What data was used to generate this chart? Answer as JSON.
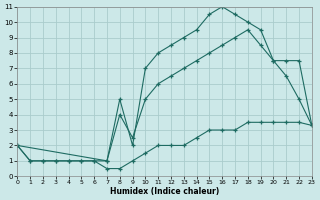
{
  "bg_color": "#cce8e8",
  "grid_color": "#aacccc",
  "line_color": "#1e6b62",
  "xlim": [
    0,
    23
  ],
  "ylim": [
    0,
    11
  ],
  "xticks": [
    0,
    1,
    2,
    3,
    4,
    5,
    6,
    7,
    8,
    9,
    10,
    11,
    12,
    13,
    14,
    15,
    16,
    17,
    18,
    19,
    20,
    21,
    22,
    23
  ],
  "yticks": [
    0,
    1,
    2,
    3,
    4,
    5,
    6,
    7,
    8,
    9,
    10,
    11
  ],
  "xlabel": "Humidex (Indice chaleur)",
  "line_top_x": [
    0,
    1,
    2,
    3,
    4,
    5,
    6,
    7,
    8,
    9,
    10,
    11,
    12,
    13,
    14,
    15,
    16,
    17,
    18,
    19,
    20,
    21,
    22,
    23
  ],
  "line_top_y": [
    2,
    1,
    1,
    1,
    1,
    1,
    1,
    1,
    5,
    2,
    7,
    8,
    8.5,
    9,
    9.5,
    10.5,
    11,
    10.5,
    10,
    9.5,
    7.5,
    6.5,
    5,
    3.3
  ],
  "line_mid_x": [
    0,
    7,
    8,
    9,
    10,
    11,
    12,
    13,
    14,
    15,
    16,
    17,
    18,
    19,
    20,
    21,
    22,
    23
  ],
  "line_mid_y": [
    2,
    1,
    4,
    2.5,
    5,
    6,
    6.5,
    7,
    7.5,
    8,
    8.5,
    9,
    9.5,
    8.5,
    7.5,
    7.5,
    7.5,
    3.3
  ],
  "line_bot_x": [
    0,
    1,
    2,
    3,
    4,
    5,
    6,
    7,
    8,
    9,
    10,
    11,
    12,
    13,
    14,
    15,
    16,
    17,
    18,
    19,
    20,
    21,
    22,
    23
  ],
  "line_bot_y": [
    2,
    1,
    1,
    1,
    1,
    1,
    1,
    0.5,
    0.5,
    1,
    1.5,
    2,
    2,
    2,
    2.5,
    3,
    3,
    3,
    3.5,
    3.5,
    3.5,
    3.5,
    3.5,
    3.3
  ]
}
